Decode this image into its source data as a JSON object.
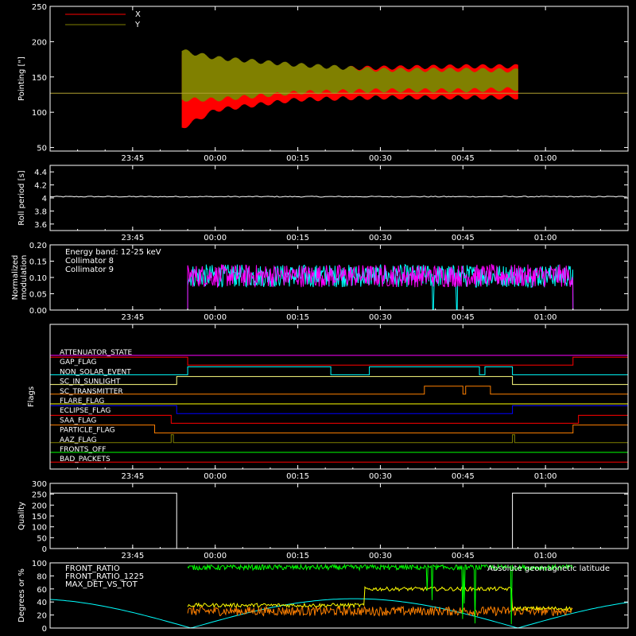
{
  "chart_data": [
    {
      "id": "pointing",
      "type": "line",
      "ylabel": "Pointing [\"]",
      "ylim": [
        45,
        250
      ],
      "yticks": [
        50,
        100,
        150,
        200,
        250
      ],
      "x_ticks": [
        "23:45",
        "00:00",
        "00:15",
        "00:30",
        "00:45",
        "01:00"
      ],
      "xlim_minutes": [
        -30,
        75
      ],
      "series": [
        {
          "name": "X",
          "color": "#ff0000",
          "start": -6,
          "end": 55,
          "upper": [
            [
              -6,
              185
            ],
            [
              0,
              170
            ],
            [
              15,
              165
            ],
            [
              30,
              166
            ],
            [
              45,
              168
            ],
            [
              55,
              168
            ]
          ],
          "lower": [
            [
              -6,
              75
            ],
            [
              0,
              100
            ],
            [
              15,
              115
            ],
            [
              30,
              118
            ],
            [
              45,
              118
            ],
            [
              55,
              118
            ]
          ]
        },
        {
          "name": "Y",
          "color": "#808000",
          "start": -6,
          "end": 55,
          "upper": [
            [
              -6,
              190
            ],
            [
              0,
              180
            ],
            [
              15,
              170
            ],
            [
              30,
              163
            ],
            [
              45,
              163
            ],
            [
              55,
              162
            ]
          ],
          "lower": [
            [
              -6,
              115
            ],
            [
              0,
              115
            ],
            [
              15,
              125
            ],
            [
              30,
              128
            ],
            [
              45,
              128
            ],
            [
              55,
              130
            ]
          ]
        }
      ],
      "reference_line": 127,
      "reference_color": "#b0a030"
    },
    {
      "id": "roll",
      "type": "line",
      "ylabel": "Roll period [s]",
      "ylim": [
        3.5,
        4.5
      ],
      "yticks": [
        3.6,
        3.8,
        4.0,
        4.2,
        4.4
      ],
      "x_ticks": [
        "23:45",
        "00:00",
        "00:15",
        "00:30",
        "00:45",
        "01:00"
      ],
      "series": [
        {
          "color": "#ffffff",
          "value": 4.02
        }
      ]
    },
    {
      "id": "modulation",
      "type": "line",
      "ylabel": "Normalized modulation",
      "ylim": [
        0,
        0.2
      ],
      "yticks": [
        0.0,
        0.05,
        0.1,
        0.15,
        0.2
      ],
      "ytick_labels": [
        "0.00",
        "0.05",
        "0.10",
        "0.15",
        "0.20"
      ],
      "x_ticks": [
        "23:45",
        "00:00",
        "00:15",
        "00:30",
        "00:45",
        "01:00"
      ],
      "legend": [
        "Energy band: 12-25 keV",
        "Collimator 8",
        "Collimator 9"
      ],
      "legend_colors": [
        "#ffffff",
        "#00ffff",
        "#ff00ff"
      ],
      "series": [
        {
          "name": "Collimator 8",
          "color": "#00ffff",
          "start": -5,
          "end": 65,
          "mean": 0.105,
          "gaps": [
            [
              39.5,
              44
            ]
          ]
        },
        {
          "name": "Collimator 9",
          "color": "#ff00ff",
          "start": -5,
          "end": 65,
          "mean": 0.105
        }
      ]
    },
    {
      "id": "flags",
      "type": "line",
      "ylabel": "Flags",
      "x_ticks": [
        "23:45",
        "00:00",
        "00:15",
        "00:30",
        "00:45",
        "01:00"
      ],
      "flags": [
        {
          "label": "ATTENUATOR_STATE",
          "color": "#ff00ff",
          "steps": [
            [
              -30,
              0
            ]
          ]
        },
        {
          "label": "GAP_FLAG",
          "color": "#ff0000",
          "steps": [
            [
              -30,
              1
            ],
            [
              -5,
              0
            ],
            [
              65,
              1
            ]
          ]
        },
        {
          "label": "NON_SOLAR_EVENT",
          "color": "#00ffff",
          "steps": [
            [
              -30,
              0
            ],
            [
              -5,
              1
            ],
            [
              12,
              1
            ],
            [
              19,
              1
            ],
            [
              21,
              0
            ],
            [
              28,
              1
            ],
            [
              45,
              1
            ],
            [
              48,
              0
            ],
            [
              49,
              1
            ],
            [
              54,
              0
            ]
          ]
        },
        {
          "label": "SC_IN_SUNLIGHT",
          "color": "#ffff80",
          "steps": [
            [
              -30,
              0
            ],
            [
              -7,
              1
            ],
            [
              54,
              0
            ]
          ]
        },
        {
          "label": "SC_TRANSMITTER",
          "color": "#ff8000",
          "steps": [
            [
              -30,
              0
            ],
            [
              38,
              1
            ],
            [
              45,
              0
            ],
            [
              45.5,
              1
            ],
            [
              50,
              0
            ]
          ]
        },
        {
          "label": "FLARE_FLAG",
          "color": "#ffff00",
          "steps": [
            [
              -30,
              0
            ]
          ]
        },
        {
          "label": "ECLIPSE_FLAG",
          "color": "#0000ff",
          "steps": [
            [
              -30,
              1
            ],
            [
              -7,
              0
            ],
            [
              54,
              1
            ]
          ]
        },
        {
          "label": "SAA_FLAG",
          "color": "#ff0000",
          "steps": [
            [
              -30,
              1
            ],
            [
              -8,
              0
            ],
            [
              66,
              1
            ]
          ]
        },
        {
          "label": "PARTICLE_FLAG",
          "color": "#ff8000",
          "steps": [
            [
              -30,
              1
            ],
            [
              -11,
              0
            ],
            [
              65,
              1
            ]
          ]
        },
        {
          "label": "AAZ_FLAG",
          "color": "#808000",
          "steps": [
            [
              -30,
              0
            ],
            [
              -8,
              1
            ],
            [
              -7.6,
              0
            ],
            [
              54,
              1
            ],
            [
              54.4,
              0
            ]
          ]
        },
        {
          "label": "FRONTS_OFF",
          "color": "#00ff00",
          "steps": [
            [
              -30,
              0
            ]
          ]
        },
        {
          "label": "BAD_PACKETS",
          "color": "#ff0000",
          "steps": [
            [
              -30,
              0
            ]
          ]
        }
      ]
    },
    {
      "id": "quality",
      "type": "line",
      "ylabel": "Quality",
      "ylim": [
        0,
        300
      ],
      "yticks": [
        0,
        50,
        100,
        150,
        200,
        250,
        300
      ],
      "x_ticks": [
        "23:45",
        "00:00",
        "00:15",
        "00:30",
        "00:45",
        "01:00"
      ],
      "series": [
        {
          "color": "#ffffff",
          "steps": [
            [
              -30,
              255
            ],
            [
              -7,
              0
            ],
            [
              54,
              255
            ]
          ]
        }
      ]
    },
    {
      "id": "degrees",
      "type": "line",
      "ylabel": "Degrees or %",
      "ylim": [
        0,
        100
      ],
      "yticks": [
        0,
        20,
        40,
        60,
        80,
        100
      ],
      "legend": [
        "FRONT_RATIO",
        "FRONT_RATIO_1225",
        "MAX_DET_VS_TOT"
      ],
      "legend_colors": [
        "#ffff00",
        "#00ff00",
        "#ff8000"
      ],
      "annotation": "Absolute geomagnetic latitude",
      "annotation_color": "#00ffff",
      "series": [
        {
          "name": "FRONT_RATIO",
          "color": "#ffff00"
        },
        {
          "name": "FRONT_RATIO_1225",
          "color": "#00ff00"
        },
        {
          "name": "MAX_DET_VS_TOT",
          "color": "#ff8000"
        },
        {
          "name": "Absolute geomagnetic latitude",
          "color": "#00ffff"
        }
      ]
    }
  ]
}
